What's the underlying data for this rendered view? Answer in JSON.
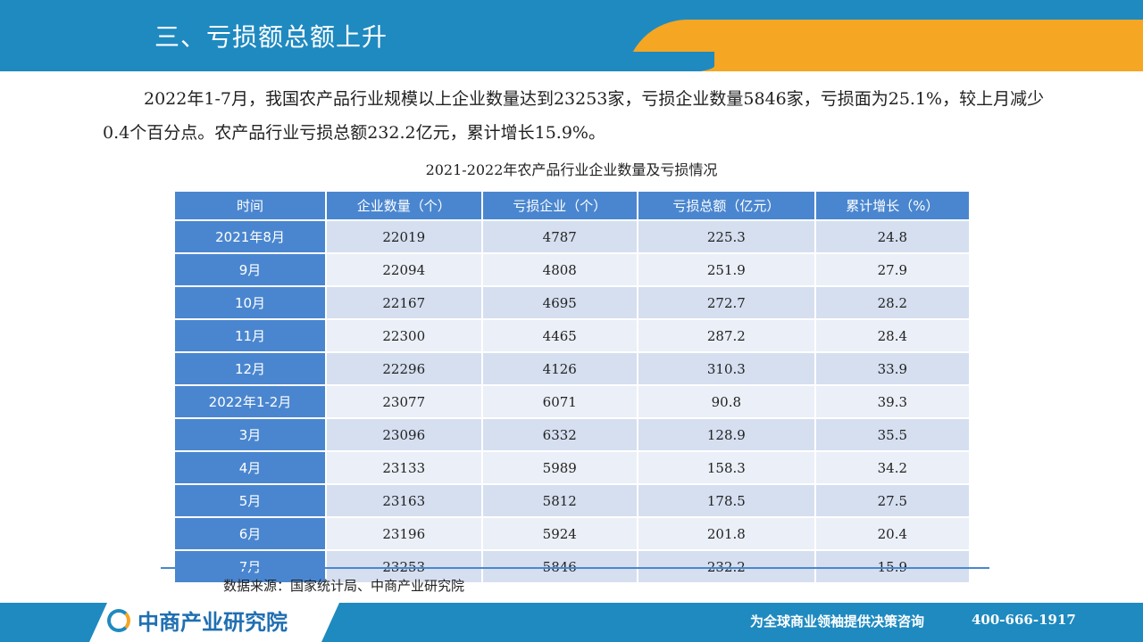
{
  "header": {
    "title": "三、亏损额总额上升"
  },
  "body": {
    "para1": "2022年1-7月，我国农产品行业规模以上企业数量达到23253家，亏损企业数量5846家，亏损面为25.1%，较上月减少0.4个百分点。农产品行业亏损总额232.2亿元，累计增长15.9%。"
  },
  "table": {
    "title": "2021-2022年农产品行业企业数量及亏损情况",
    "headers": [
      "时间",
      "企业数量（个）",
      "亏损企业（个）",
      "亏损总额（亿元）",
      "累计增长（%）"
    ],
    "rows": [
      [
        "2021年8月",
        "22019",
        "4787",
        "225.3",
        "24.8"
      ],
      [
        "9月",
        "22094",
        "4808",
        "251.9",
        "27.9"
      ],
      [
        "10月",
        "22167",
        "4695",
        "272.7",
        "28.2"
      ],
      [
        "11月",
        "22300",
        "4465",
        "287.2",
        "28.4"
      ],
      [
        "12月",
        "22296",
        "4126",
        "310.3",
        "33.9"
      ],
      [
        "2022年1-2月",
        "23077",
        "6071",
        "90.8",
        "39.3"
      ],
      [
        "3月",
        "23096",
        "6332",
        "128.9",
        "35.5"
      ],
      [
        "4月",
        "23133",
        "5989",
        "158.3",
        "34.2"
      ],
      [
        "5月",
        "23163",
        "5812",
        "178.5",
        "27.5"
      ],
      [
        "6月",
        "23196",
        "5924",
        "201.8",
        "20.4"
      ],
      [
        "7月",
        "23253",
        "5846",
        "232.2",
        "15.9"
      ]
    ]
  },
  "source": "数据来源：国家统计局、中商产业研究院",
  "footer": {
    "logo_text": "中商产业研究院",
    "slogan": "为全球商业领袖提供决策咨询",
    "phone": "400-666-1917"
  },
  "colors": {
    "brand_blue": "#1f8ac0",
    "accent_orange": "#f5a623",
    "table_blue": "#4a86cf"
  }
}
